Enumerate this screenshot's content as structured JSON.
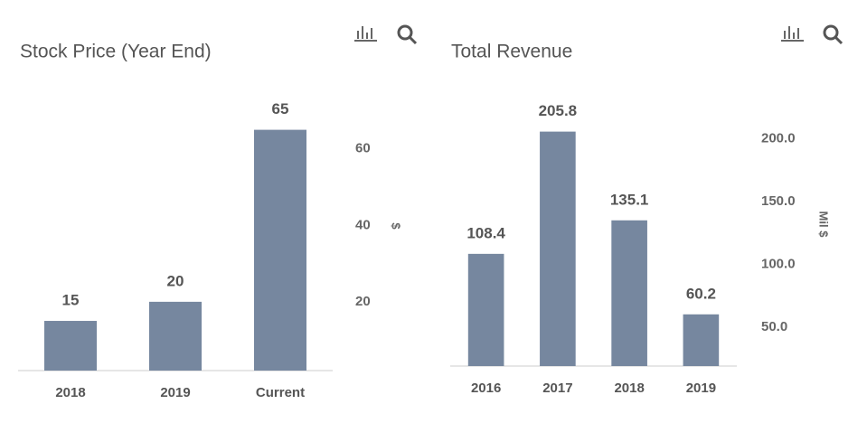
{
  "chart_data": [
    {
      "type": "bar",
      "title": "Stock Price (Year End)",
      "categories": [
        "2018",
        "2019",
        "Current"
      ],
      "values": [
        15,
        20,
        65
      ],
      "color": "#76879f",
      "y_label": "$",
      "ylim": [
        2,
        72
      ],
      "yticks": [
        20,
        40,
        60
      ]
    },
    {
      "type": "bar",
      "title": "Total Revenue",
      "categories": [
        "2016",
        "2017",
        "2018",
        "2019"
      ],
      "values": [
        108.4,
        205.8,
        135.1,
        60.2
      ],
      "color": "#76879f",
      "y_label": "Mil $",
      "ylim": [
        19,
        230
      ],
      "yticks": [
        {
          "value": 50,
          "label": "50.0"
        },
        {
          "value": 100,
          "label": "100.0"
        },
        {
          "value": 150,
          "label": "150.0"
        },
        {
          "value": 200,
          "label": "200.0"
        }
      ]
    }
  ]
}
